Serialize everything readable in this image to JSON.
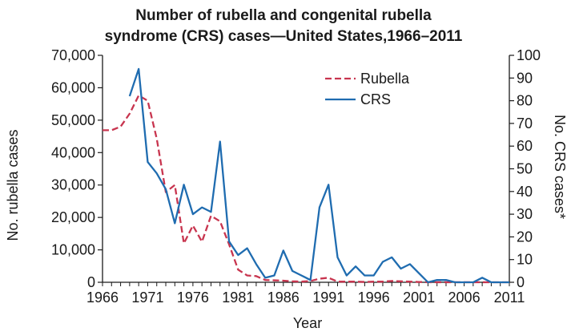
{
  "chart_data": {
    "type": "line",
    "title_line1": "Number of rubella and congenital rubella",
    "title_line2": "syndrome (CRS) cases—United States,1966–2011",
    "xlabel": "Year",
    "ylabel_left": "No. rubella cases",
    "ylabel_right": "No. CRS cases*",
    "xlim": [
      1966,
      2011
    ],
    "ylim_left": [
      0,
      70000
    ],
    "ylim_right": [
      0,
      100
    ],
    "x_ticks": [
      1966,
      1971,
      1976,
      1981,
      1986,
      1991,
      1996,
      2001,
      2006,
      2011
    ],
    "x_tick_labels": [
      "1966",
      "1971",
      "1976",
      "1981",
      "1986",
      "1991",
      "1996",
      "2001",
      "2006",
      "2011"
    ],
    "y_left_ticks": [
      0,
      10000,
      20000,
      30000,
      40000,
      50000,
      60000,
      70000
    ],
    "y_left_tick_labels": [
      "0",
      "10,000",
      "20,000",
      "30,000",
      "40,000",
      "50,000",
      "60,000",
      "70,000"
    ],
    "y_right_ticks": [
      0,
      10,
      20,
      30,
      40,
      50,
      60,
      70,
      80,
      90,
      100
    ],
    "y_right_tick_labels": [
      "0",
      "10",
      "20",
      "30",
      "40",
      "50",
      "60",
      "70",
      "80",
      "90",
      "100"
    ],
    "legend_position": "top-right",
    "series": [
      {
        "name": "Rubella",
        "axis": "left",
        "color": "#c8354f",
        "style": "dashed",
        "x": [
          1966,
          1967,
          1968,
          1969,
          1970,
          1971,
          1972,
          1973,
          1974,
          1975,
          1976,
          1977,
          1978,
          1979,
          1980,
          1981,
          1982,
          1983,
          1984,
          1985,
          1986,
          1987,
          1988,
          1989,
          1990,
          1991,
          1992,
          1993,
          1994,
          1995,
          1996,
          1997,
          1998,
          1999,
          2000,
          2001,
          2002,
          2003,
          2004,
          2005,
          2006,
          2007,
          2008,
          2009,
          2010,
          2011
        ],
        "values": [
          46900,
          46900,
          48000,
          52000,
          57600,
          56000,
          44300,
          27800,
          30000,
          12000,
          17500,
          12500,
          20500,
          18800,
          11700,
          3900,
          2100,
          1900,
          700,
          600,
          500,
          300,
          200,
          400,
          1100,
          1400,
          200,
          200,
          200,
          100,
          200,
          200,
          400,
          300,
          200,
          100,
          20,
          10,
          10,
          10,
          10,
          10,
          10,
          5,
          5,
          5
        ]
      },
      {
        "name": "CRS",
        "axis": "right",
        "color": "#1f6cb0",
        "style": "solid",
        "x": [
          1966,
          1967,
          1968,
          1969,
          1970,
          1971,
          1972,
          1973,
          1974,
          1975,
          1976,
          1977,
          1978,
          1979,
          1980,
          1981,
          1982,
          1983,
          1984,
          1985,
          1986,
          1987,
          1988,
          1989,
          1990,
          1991,
          1992,
          1993,
          1994,
          1995,
          1996,
          1997,
          1998,
          1999,
          2000,
          2001,
          2002,
          2003,
          2004,
          2005,
          2006,
          2007,
          2008,
          2009,
          2010,
          2011
        ],
        "values": [
          null,
          null,
          null,
          82,
          94,
          53,
          48,
          41,
          26,
          43,
          30,
          33,
          31,
          62,
          18,
          12,
          15,
          8,
          2,
          3,
          14,
          5,
          3,
          1,
          33,
          43,
          11,
          3,
          7,
          3,
          3,
          9,
          11,
          6,
          8,
          4,
          0,
          1,
          1,
          0,
          0,
          0,
          2,
          0,
          0,
          0
        ]
      }
    ]
  }
}
